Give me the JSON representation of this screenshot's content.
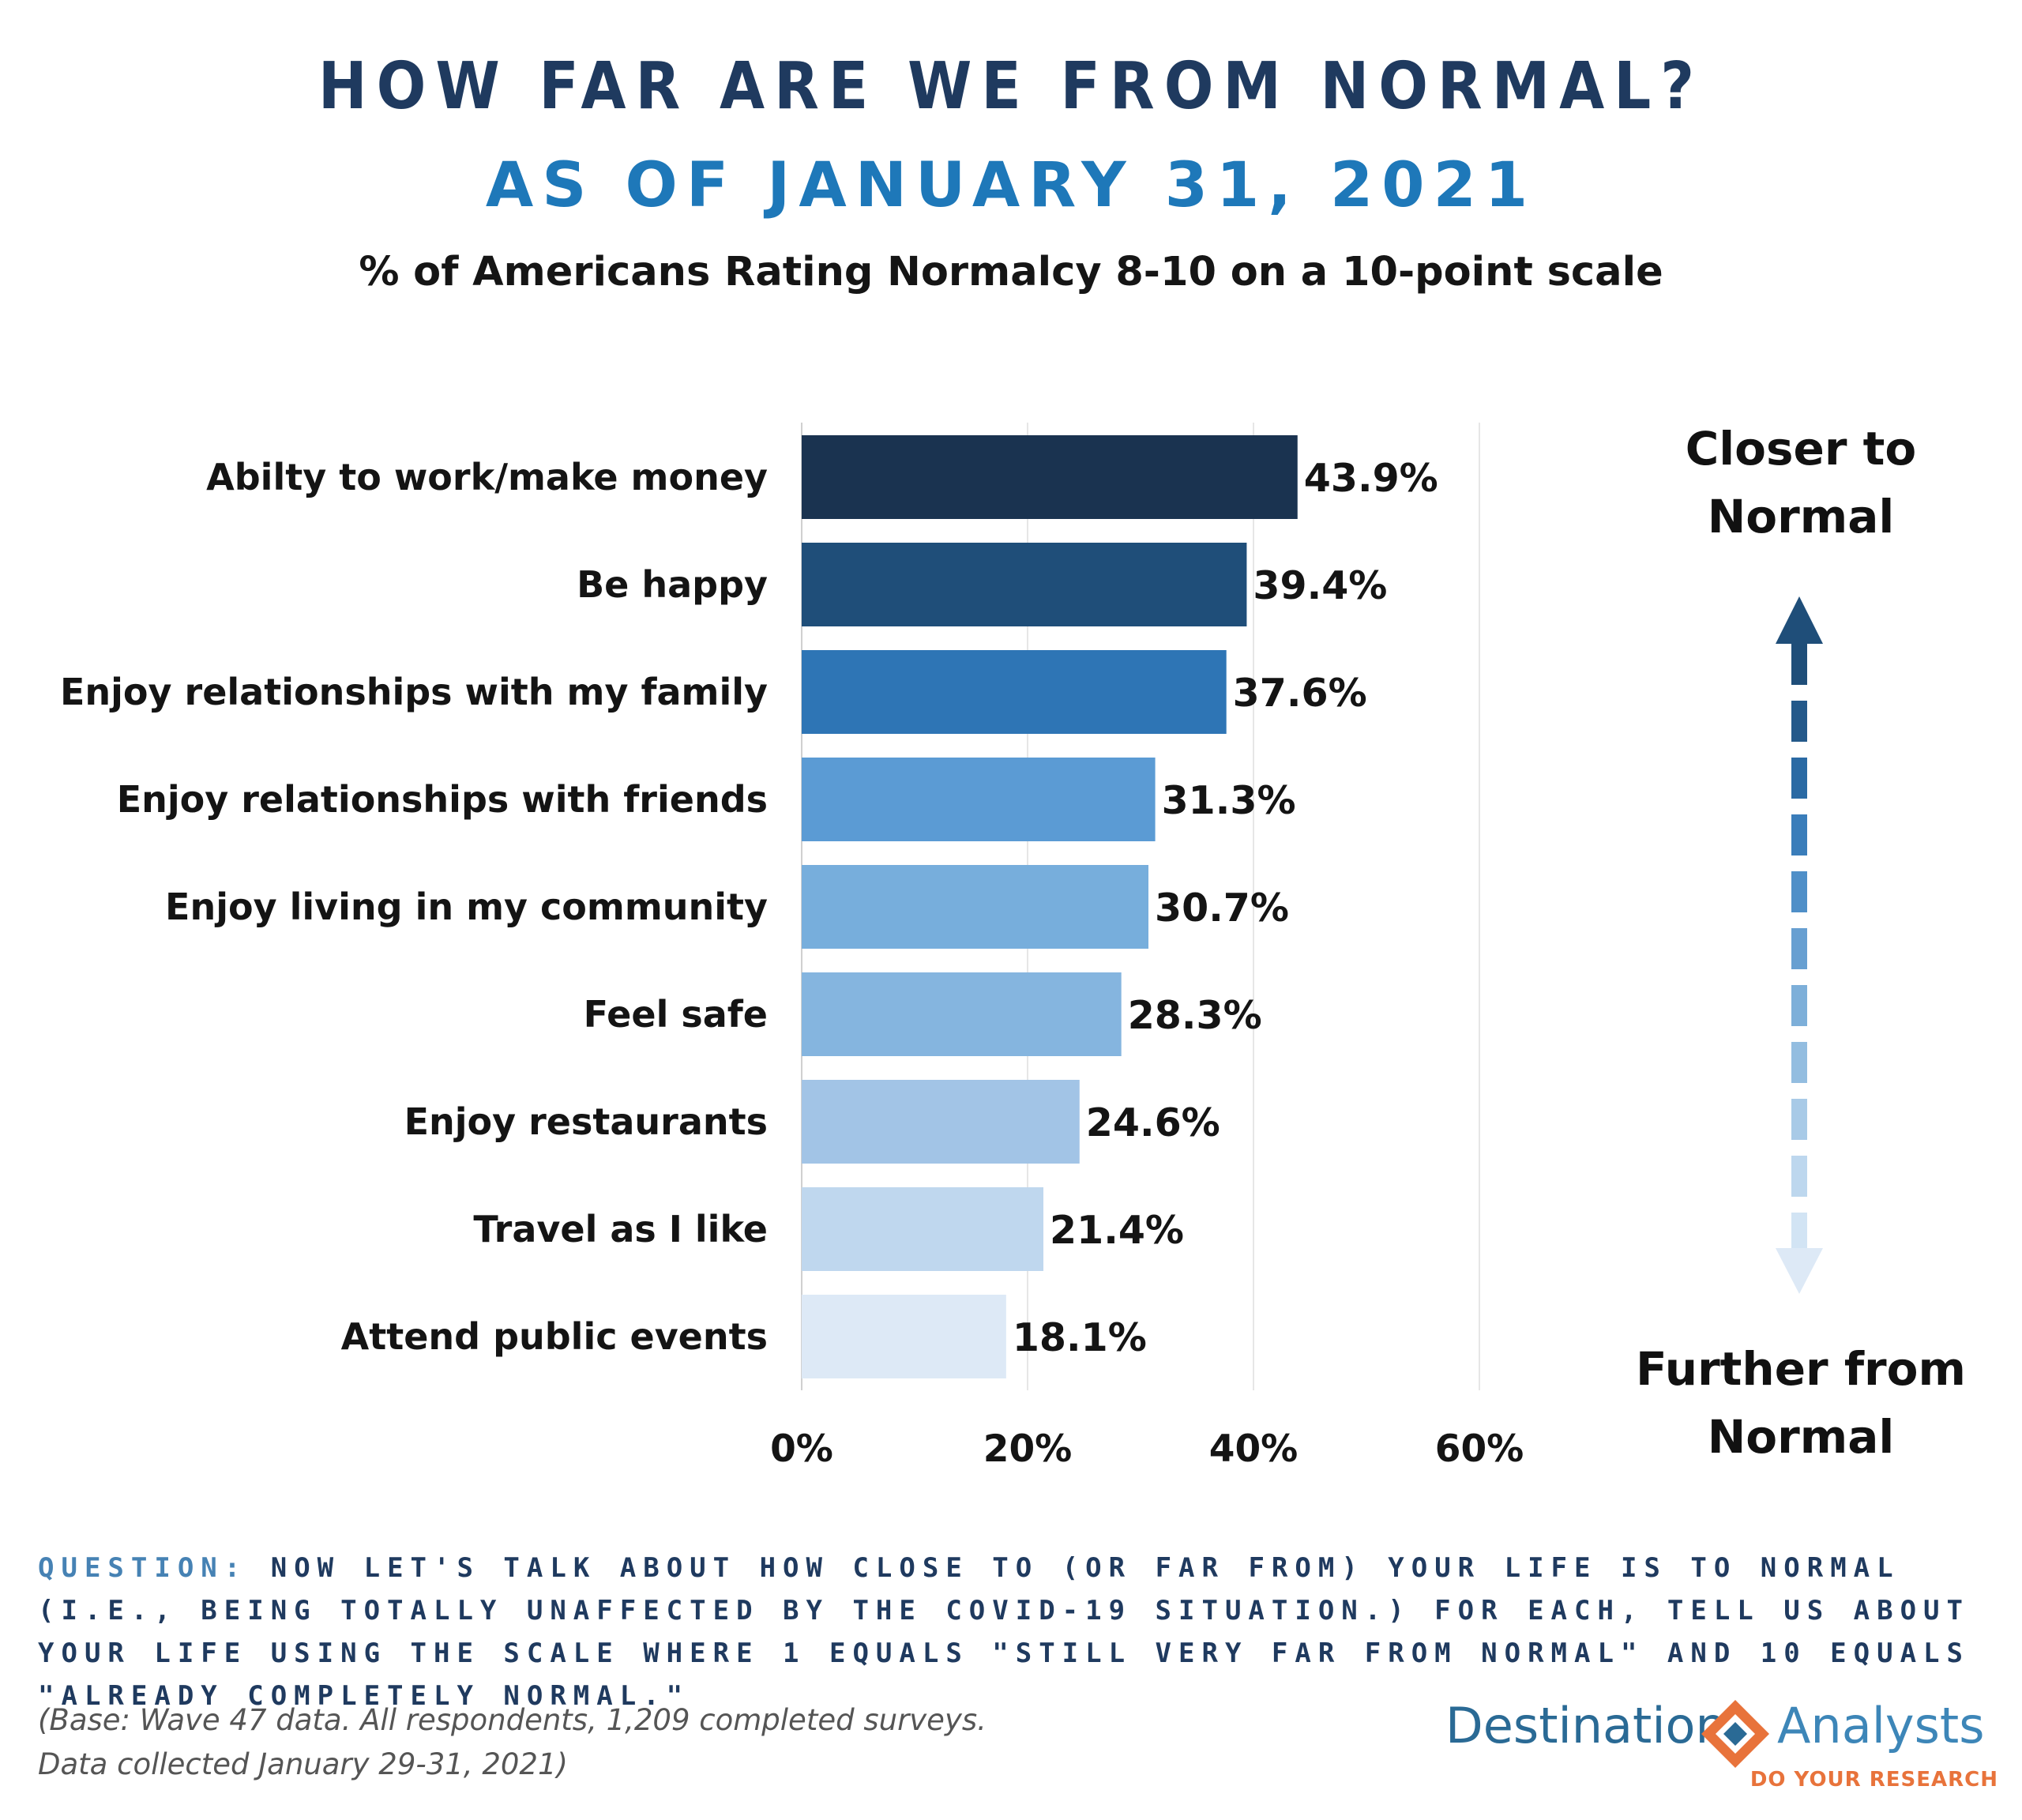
{
  "header": {
    "title": "HOW FAR ARE WE FROM NORMAL?",
    "subtitle": "AS OF JANUARY 31, 2021",
    "caption": "% of  Americans Rating Normalcy 8-10 on a 10-point scale"
  },
  "chart_data": {
    "type": "bar",
    "orientation": "horizontal",
    "title": "% of Americans Rating Normalcy 8-10 on a 10-point scale",
    "categories": [
      "Abilty to work/make money",
      "Be happy",
      "Enjoy relationships with my family",
      "Enjoy relationships with friends",
      "Enjoy living in my community",
      "Feel safe",
      "Enjoy restaurants",
      "Travel as I like",
      "Attend public events"
    ],
    "values": [
      43.9,
      39.4,
      37.6,
      31.3,
      30.7,
      28.3,
      24.6,
      21.4,
      18.1
    ],
    "value_labels": [
      "43.9%",
      "39.4%",
      "37.6%",
      "31.3%",
      "30.7%",
      "28.3%",
      "24.6%",
      "21.4%",
      "18.1%"
    ],
    "bar_colors": [
      "#1a3350",
      "#1f4e79",
      "#2e75b5",
      "#5b9bd4",
      "#77aedc",
      "#85b5df",
      "#a2c4e6",
      "#bfd7ee",
      "#dde9f6"
    ],
    "xlim": [
      0,
      60
    ],
    "xticks": [
      0,
      20,
      40,
      60
    ],
    "xtick_labels": [
      "0%",
      "20%",
      "40%",
      "60%"
    ],
    "grid": true,
    "xlabel": "",
    "ylabel": ""
  },
  "legend": {
    "top_label": "Closer to\nNormal",
    "bottom_label": "Further from\nNormal",
    "arrow_top_color": "#1f4e79",
    "arrow_bottom_color": "#dde9f6"
  },
  "footer": {
    "question_label": "QUESTION:",
    "question_text": "NOW LET'S TALK ABOUT HOW CLOSE TO (OR FAR FROM) YOUR LIFE IS TO NORMAL (I.E., BEING TOTALLY UNAFFECTED BY THE COVID-19 SITUATION.)  FOR EACH, TELL US ABOUT YOUR LIFE USING THE SCALE WHERE 1 EQUALS \"STILL VERY FAR FROM NORMAL\" AND 10 EQUALS \"ALREADY COMPLETELY NORMAL.\"",
    "base_note": "(Base: Wave 47 data. All respondents, 1,209 completed surveys.\nData collected January 29-31, 2021)"
  },
  "logo": {
    "name_left": "Destination",
    "name_right": "Analysts",
    "tagline": "DO YOUR RESEARCH",
    "orange": "#e8733b",
    "blue": "#2a6a95"
  }
}
